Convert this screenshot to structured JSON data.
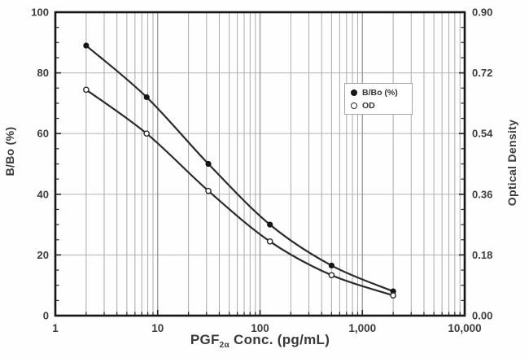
{
  "figure": {
    "background": "#fefefe",
    "axis_border_color": "#161616",
    "tick_color": "#222222",
    "text_color": "#3a3a3a",
    "grid_color_vertical_minor": "#ababab",
    "grid_color_vertical_major": "#8f8f8f",
    "grid_color_horizontal": "#bcbcbc",
    "line_color": "#2b2b2b"
  },
  "chart_data": {
    "type": "line",
    "x_scale": "log",
    "title": "",
    "xlabel": "PGF2α Conc. (pg/mL)",
    "xlabel_base": "PGF",
    "xlabel_sub": "2α",
    "xlabel_rest": " Conc. (pg/mL)",
    "ylabel_left": "B/Bo (%)",
    "ylabel_right": "Optical Density",
    "xlim": [
      1,
      10000
    ],
    "x_tick_values": [
      1,
      10,
      100,
      1000,
      10000
    ],
    "x_tick_labels": [
      "1",
      "10",
      "100",
      "1,000",
      "10,000"
    ],
    "ylim_left": [
      0,
      100
    ],
    "y_ticks_left": [
      0,
      20,
      40,
      60,
      80,
      100
    ],
    "y_minor_step_left": 5,
    "ylim_right": [
      0,
      0.9
    ],
    "y_ticks_right": [
      "0.00",
      "0.18",
      "0.36",
      "0.54",
      "0.72",
      "0.90"
    ],
    "y_minor_step_right": 0.045,
    "grid": true,
    "horizontal_gridlines_at": [
      20,
      40,
      60,
      80
    ],
    "x": [
      2,
      7.8,
      31.3,
      125,
      500,
      2000
    ],
    "series": [
      {
        "name": "B/Bo (%)",
        "axis": "left",
        "marker": "filled-circle",
        "values": [
          89,
          72,
          50,
          30,
          16.5,
          8
        ]
      },
      {
        "name": "OD",
        "axis": "right",
        "marker": "open-circle",
        "values": [
          0.67,
          0.54,
          0.37,
          0.22,
          0.12,
          0.06
        ]
      }
    ],
    "legend": {
      "position": "inside-upper-right-of-center",
      "entries": [
        "B/Bo (%)",
        "OD"
      ]
    }
  }
}
